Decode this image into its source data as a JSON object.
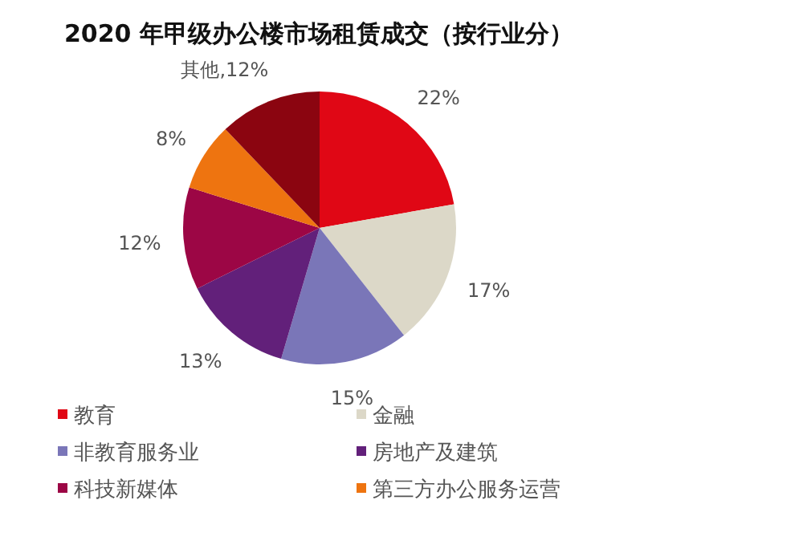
{
  "chart_data": {
    "type": "pie",
    "title": "2020 年甲级办公楼市场租赁成交（按行业分）",
    "categories": [
      "教育",
      "金融",
      "非教育服务业",
      "房地产及建筑",
      "科技新媒体",
      "第三方办公服务运营",
      null
    ],
    "values": [
      22,
      17,
      15,
      13,
      12,
      8,
      12
    ],
    "colors": [
      "#e00715",
      "#dcd8c8",
      "#7a76b8",
      "#62207a",
      "#9c0645",
      "#ee7410",
      "#8b0510"
    ],
    "value_labels": [
      "22%",
      "17%",
      "15%",
      "13%",
      "12%",
      "8%",
      "其他,12%"
    ],
    "legend": "bottom"
  }
}
